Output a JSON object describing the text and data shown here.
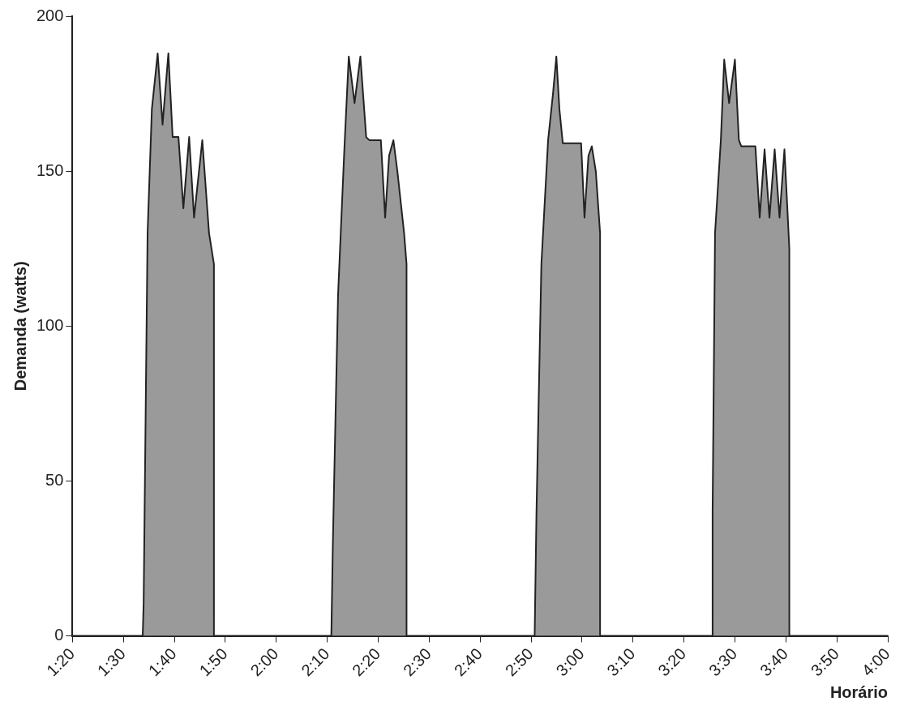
{
  "chart_data": {
    "type": "area",
    "xlabel": "Horário",
    "ylabel": "Demanda (watts)",
    "series": [
      {
        "color": "#9a9a9a",
        "x": [
          1.3333,
          1.563,
          1.566,
          1.579,
          1.593,
          1.612,
          1.628,
          1.647,
          1.661,
          1.68,
          1.696,
          1.715,
          1.731,
          1.758,
          1.78,
          1.796,
          1.796,
          2.18,
          2.185,
          2.202,
          2.223,
          2.237,
          2.256,
          2.275,
          2.294,
          2.304,
          2.342,
          2.356,
          2.369,
          2.383,
          2.396,
          2.418,
          2.426,
          2.426,
          2.845,
          2.851,
          2.867,
          2.889,
          2.905,
          2.916,
          2.926,
          2.937,
          2.997,
          3.008,
          3.021,
          3.032,
          3.045,
          3.059,
          3.059,
          3.427,
          3.427,
          3.435,
          3.454,
          3.465,
          3.481,
          3.5,
          3.513,
          3.521,
          3.567,
          3.581,
          3.597,
          3.613,
          3.63,
          3.646,
          3.662,
          3.673,
          3.678,
          3.678,
          4
        ],
        "values": [
          0,
          0,
          10,
          130,
          170,
          188,
          165,
          188,
          161,
          161,
          138,
          161,
          135,
          160,
          130,
          120,
          0,
          0,
          30,
          110,
          158,
          187,
          172,
          187,
          161,
          160,
          160,
          135,
          155,
          160,
          150,
          130,
          120,
          0,
          0,
          40,
          120,
          160,
          175,
          187,
          170,
          159,
          159,
          135,
          155,
          158,
          150,
          130,
          0,
          0,
          40,
          130,
          160,
          186,
          172,
          186,
          160,
          158,
          158,
          135,
          157,
          135,
          157,
          135,
          157,
          135,
          125,
          0,
          0
        ]
      }
    ],
    "xlim": [
      1.3333,
      4
    ],
    "xticks": [
      {
        "value": 1.3333,
        "label": "1:20"
      },
      {
        "value": 1.5,
        "label": "1:30"
      },
      {
        "value": 1.6667,
        "label": "1:40"
      },
      {
        "value": 1.8333,
        "label": "1:50"
      },
      {
        "value": 2,
        "label": "2:00"
      },
      {
        "value": 2.1667,
        "label": "2:10"
      },
      {
        "value": 2.3333,
        "label": "2:20"
      },
      {
        "value": 2.5,
        "label": "2:30"
      },
      {
        "value": 2.6667,
        "label": "2:40"
      },
      {
        "value": 2.8333,
        "label": "2:50"
      },
      {
        "value": 3,
        "label": "3:00"
      },
      {
        "value": 3.1667,
        "label": "3:10"
      },
      {
        "value": 3.3333,
        "label": "3:20"
      },
      {
        "value": 3.5,
        "label": "3:30"
      },
      {
        "value": 3.6667,
        "label": "3:40"
      },
      {
        "value": 3.8333,
        "label": "3:50"
      },
      {
        "value": 4,
        "label": "4:00"
      }
    ],
    "ylim": [
      0,
      200
    ],
    "yticks": [
      0,
      50,
      100,
      150,
      200
    ],
    "grid": false,
    "legend": false,
    "marker": "none"
  }
}
